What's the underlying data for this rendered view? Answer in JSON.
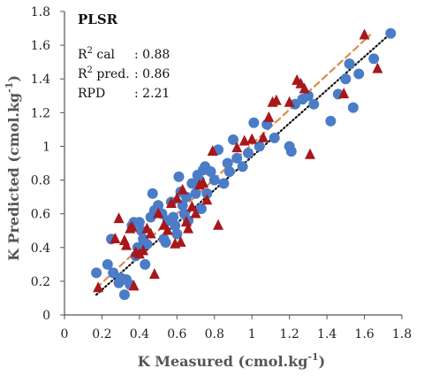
{
  "chart_data": {
    "type": "scatter",
    "xlabel": {
      "main": "K Measured (cmol.kg",
      "sup": "-1",
      "end": ")"
    },
    "ylabel": {
      "main": "K Predicted (cmol.kg",
      "sup": "-1",
      "end": ")"
    },
    "xlim": [
      0,
      1.8
    ],
    "ylim": [
      0,
      1.8
    ],
    "xticks": [
      "0",
      "0.2",
      "0.4",
      "0.6",
      "0.8",
      "1",
      "1.2",
      "1.4",
      "1.6",
      "1.8"
    ],
    "yticks": [
      "0",
      "0.2",
      "0.4",
      "0.6",
      "0.8",
      "1",
      "1.2",
      "1.4",
      "1.6",
      "1.8"
    ],
    "grid": false,
    "annotation": {
      "title": "PLSR",
      "rows": [
        {
          "pre": "R",
          "sup": "2",
          "post": " cal",
          "value": ": 0.88"
        },
        {
          "pre": "R",
          "sup": "2",
          "post": " pred.",
          "value": ": 0.86"
        },
        {
          "pre": "RPD",
          "sup": "",
          "post": "",
          "value": ": 2.21"
        }
      ]
    },
    "series": [
      {
        "marker": "circle",
        "color": "#4a7cc7",
        "points": [
          [
            0.17,
            0.25
          ],
          [
            0.23,
            0.3
          ],
          [
            0.25,
            0.45
          ],
          [
            0.26,
            0.25
          ],
          [
            0.29,
            0.19
          ],
          [
            0.3,
            0.22
          ],
          [
            0.32,
            0.12
          ],
          [
            0.33,
            0.21
          ],
          [
            0.35,
            0.18
          ],
          [
            0.36,
            0.53
          ],
          [
            0.37,
            0.55
          ],
          [
            0.38,
            0.35
          ],
          [
            0.39,
            0.4
          ],
          [
            0.4,
            0.55
          ],
          [
            0.41,
            0.5
          ],
          [
            0.42,
            0.45
          ],
          [
            0.43,
            0.3
          ],
          [
            0.44,
            0.42
          ],
          [
            0.46,
            0.58
          ],
          [
            0.47,
            0.72
          ],
          [
            0.48,
            0.62
          ],
          [
            0.5,
            0.65
          ],
          [
            0.52,
            0.6
          ],
          [
            0.53,
            0.45
          ],
          [
            0.54,
            0.43
          ],
          [
            0.55,
            0.56
          ],
          [
            0.57,
            0.67
          ],
          [
            0.58,
            0.58
          ],
          [
            0.59,
            0.53
          ],
          [
            0.6,
            0.48
          ],
          [
            0.61,
            0.82
          ],
          [
            0.62,
            0.73
          ],
          [
            0.63,
            0.65
          ],
          [
            0.64,
            0.6
          ],
          [
            0.65,
            0.7
          ],
          [
            0.66,
            0.56
          ],
          [
            0.68,
            0.78
          ],
          [
            0.7,
            0.72
          ],
          [
            0.71,
            0.83
          ],
          [
            0.72,
            0.8
          ],
          [
            0.73,
            0.63
          ],
          [
            0.74,
            0.86
          ],
          [
            0.75,
            0.88
          ],
          [
            0.76,
            0.72
          ],
          [
            0.78,
            0.85
          ],
          [
            0.8,
            0.8
          ],
          [
            0.82,
            0.98
          ],
          [
            0.85,
            0.78
          ],
          [
            0.87,
            0.9
          ],
          [
            0.88,
            0.85
          ],
          [
            0.9,
            1.04
          ],
          [
            0.92,
            0.93
          ],
          [
            0.95,
            0.88
          ],
          [
            0.98,
            0.96
          ],
          [
            1.01,
            1.14
          ],
          [
            1.04,
            1.0
          ],
          [
            1.08,
            1.13
          ],
          [
            1.12,
            1.05
          ],
          [
            1.2,
            1.0
          ],
          [
            1.21,
            0.97
          ],
          [
            1.23,
            1.25
          ],
          [
            1.27,
            1.28
          ],
          [
            1.3,
            1.3
          ],
          [
            1.33,
            1.25
          ],
          [
            1.42,
            1.15
          ],
          [
            1.46,
            1.31
          ],
          [
            1.5,
            1.4
          ],
          [
            1.52,
            1.49
          ],
          [
            1.54,
            1.23
          ],
          [
            1.57,
            1.43
          ],
          [
            1.65,
            1.52
          ],
          [
            1.74,
            1.67
          ]
        ]
      },
      {
        "marker": "triangle",
        "color": "#a8171a",
        "points": [
          [
            0.18,
            0.16
          ],
          [
            0.27,
            0.45
          ],
          [
            0.29,
            0.57
          ],
          [
            0.32,
            0.44
          ],
          [
            0.33,
            0.41
          ],
          [
            0.35,
            0.51
          ],
          [
            0.36,
            0.52
          ],
          [
            0.37,
            0.17
          ],
          [
            0.38,
            0.37
          ],
          [
            0.4,
            0.36
          ],
          [
            0.42,
            0.38
          ],
          [
            0.44,
            0.51
          ],
          [
            0.46,
            0.48
          ],
          [
            0.48,
            0.24
          ],
          [
            0.5,
            0.6
          ],
          [
            0.53,
            0.53
          ],
          [
            0.55,
            0.5
          ],
          [
            0.57,
            0.66
          ],
          [
            0.59,
            0.42
          ],
          [
            0.6,
            0.69
          ],
          [
            0.62,
            0.43
          ],
          [
            0.63,
            0.74
          ],
          [
            0.65,
            0.55
          ],
          [
            0.66,
            0.51
          ],
          [
            0.68,
            0.64
          ],
          [
            0.7,
            0.6
          ],
          [
            0.72,
            0.77
          ],
          [
            0.74,
            0.78
          ],
          [
            0.76,
            0.68
          ],
          [
            0.79,
            0.97
          ],
          [
            0.82,
            0.53
          ],
          [
            0.92,
            0.99
          ],
          [
            0.96,
            1.03
          ],
          [
            1.0,
            1.04
          ],
          [
            1.06,
            1.05
          ],
          [
            1.09,
            1.17
          ],
          [
            1.11,
            1.26
          ],
          [
            1.13,
            1.27
          ],
          [
            1.2,
            1.26
          ],
          [
            1.24,
            1.39
          ],
          [
            1.26,
            1.37
          ],
          [
            1.28,
            1.34
          ],
          [
            1.31,
            0.95
          ],
          [
            1.49,
            1.31
          ],
          [
            1.6,
            1.66
          ],
          [
            1.67,
            1.46
          ]
        ]
      }
    ],
    "lines": [
      {
        "style": "dotted",
        "color": "#111111",
        "from": [
          0.17,
          0.12
        ],
        "to": [
          1.75,
          1.68
        ]
      },
      {
        "style": "dashed",
        "color": "#e0894a",
        "from": [
          0.17,
          0.16
        ],
        "to": [
          1.63,
          1.66
        ]
      }
    ]
  }
}
